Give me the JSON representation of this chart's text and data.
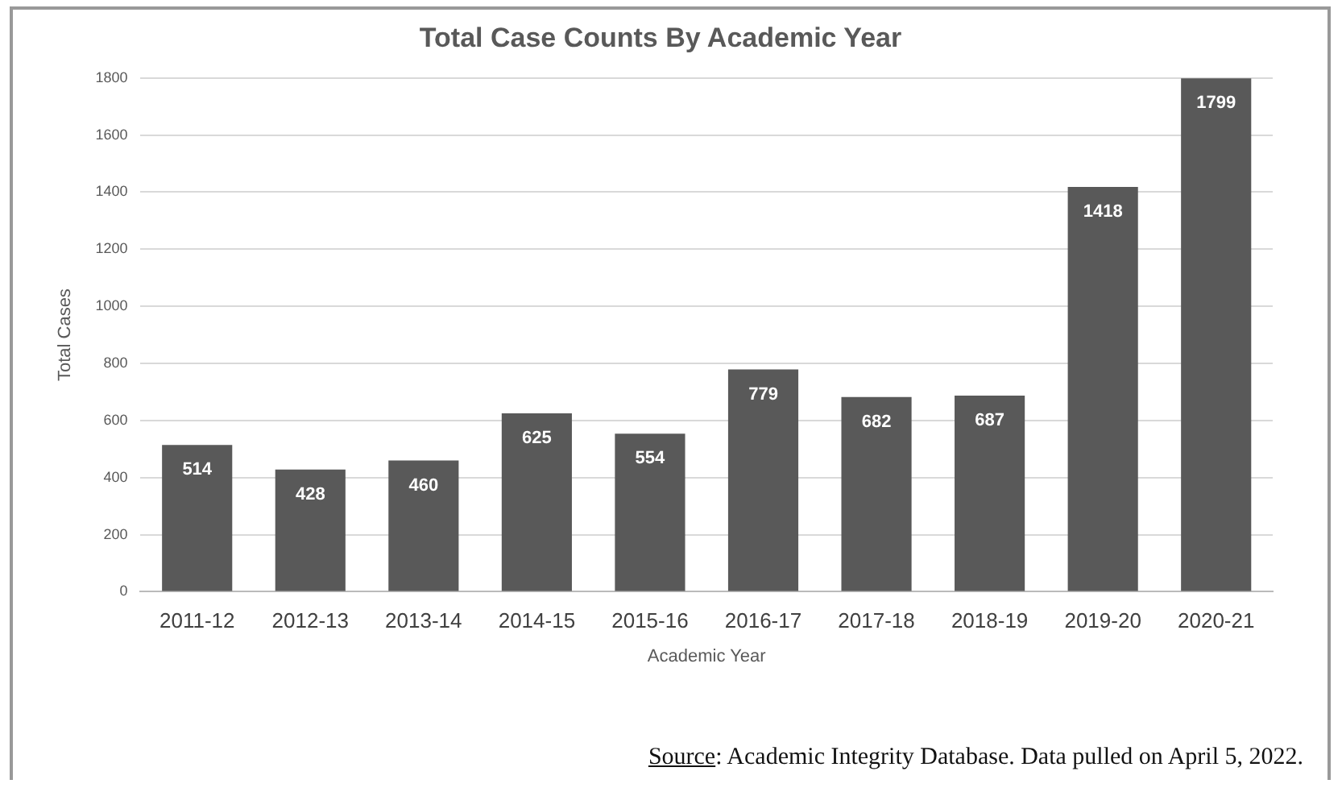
{
  "chart_data": {
    "type": "bar",
    "title": "Total Case Counts By Academic Year",
    "xlabel": "Academic Year",
    "ylabel": "Total Cases",
    "categories": [
      "2011-12",
      "2012-13",
      "2013-14",
      "2014-15",
      "2015-16",
      "2016-17",
      "2017-18",
      "2018-19",
      "2019-20",
      "2020-21"
    ],
    "values": [
      514,
      428,
      460,
      625,
      554,
      779,
      682,
      687,
      1418,
      1799
    ],
    "color": "#595959",
    "ylim": [
      0,
      1800
    ],
    "yticks": [
      0,
      200,
      400,
      600,
      800,
      1000,
      1200,
      1400,
      1600,
      1800
    ],
    "grid": "y",
    "data_labels": true,
    "legend": false,
    "annotations": [
      "Source: Academic Integrity Database. Data pulled on April 5, 2022."
    ]
  }
}
